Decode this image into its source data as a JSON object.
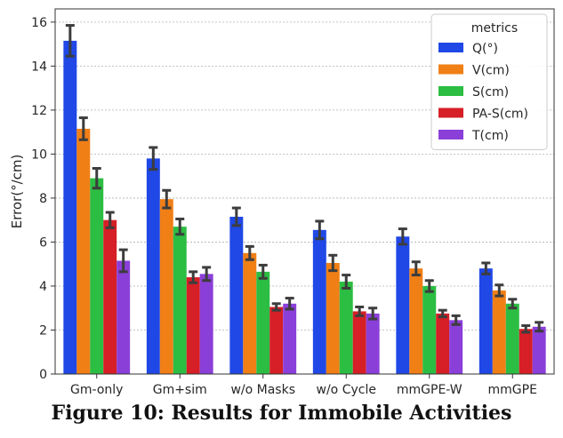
{
  "caption": "Figure 10: Results for Immobile Activities",
  "chart_data": {
    "type": "bar",
    "title": "",
    "xlabel": "",
    "ylabel": "Error(°/cm)",
    "ylim": [
      0,
      16.6
    ],
    "yticks": [
      0,
      2,
      4,
      6,
      8,
      10,
      12,
      14,
      16
    ],
    "grid": "horizontal",
    "legend": {
      "title": "metrics",
      "placement": "top-right"
    },
    "categories": [
      "Gm-only",
      "Gm+sim",
      "w/o Masks",
      "w/o Cycle",
      "mmGPE-W",
      "mmGPE"
    ],
    "series": [
      {
        "name": "Q(°)",
        "color": "#1f48e6",
        "values": [
          15.15,
          9.8,
          7.15,
          6.55,
          6.25,
          4.8
        ],
        "err": [
          0.7,
          0.5,
          0.4,
          0.4,
          0.35,
          0.25
        ]
      },
      {
        "name": "V(cm)",
        "color": "#f07f16",
        "values": [
          11.15,
          7.95,
          5.5,
          5.05,
          4.8,
          3.8
        ],
        "err": [
          0.5,
          0.4,
          0.3,
          0.35,
          0.3,
          0.25
        ]
      },
      {
        "name": "S(cm)",
        "color": "#2cbd43",
        "values": [
          8.9,
          6.7,
          4.65,
          4.2,
          4.0,
          3.2
        ],
        "err": [
          0.45,
          0.35,
          0.3,
          0.3,
          0.25,
          0.2
        ]
      },
      {
        "name": "PA-S(cm)",
        "color": "#d61f26",
        "values": [
          7.0,
          4.4,
          3.05,
          2.85,
          2.75,
          2.05
        ],
        "err": [
          0.35,
          0.25,
          0.15,
          0.2,
          0.15,
          0.15
        ]
      },
      {
        "name": "T(cm)",
        "color": "#8b3fd9",
        "values": [
          5.15,
          4.55,
          3.2,
          2.75,
          2.45,
          2.15
        ],
        "err": [
          0.5,
          0.3,
          0.25,
          0.25,
          0.2,
          0.2
        ]
      }
    ]
  }
}
